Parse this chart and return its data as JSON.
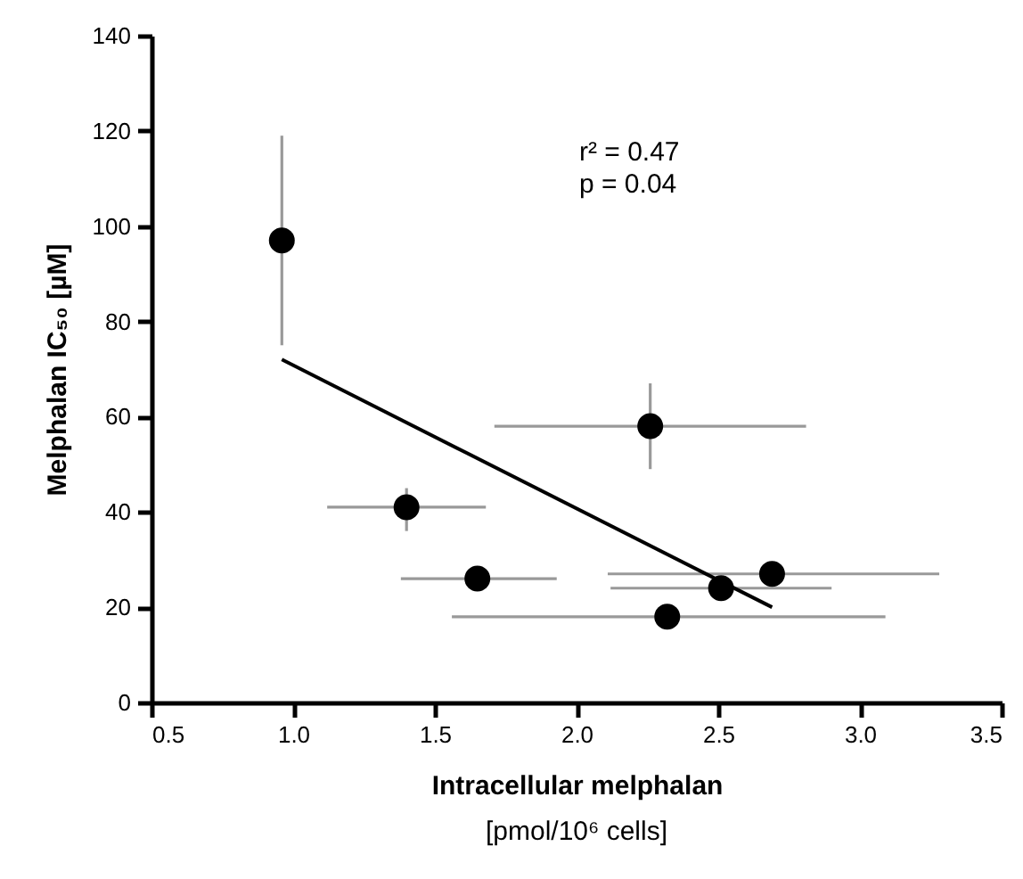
{
  "chart_data": {
    "type": "scatter",
    "xlabel": "Intracellular melphalan\n[pmol/10⁶ cells]",
    "ylabel": "Melphalan IC₅₀ [µM]",
    "annotations": [
      "r² = 0.47",
      "p = 0.04"
    ],
    "xlim": [
      0.5,
      3.5
    ],
    "xticks": [
      0.5,
      {
        "value": 1,
        "label": "1.0"
      },
      1.5,
      {
        "value": 2,
        "label": "2.0"
      },
      2.5,
      {
        "value": 3,
        "label": "3.0"
      },
      3.5
    ],
    "ylim": [
      0,
      140
    ],
    "yticks": [
      0,
      20,
      40,
      60,
      80,
      100,
      120,
      140
    ],
    "grid": false,
    "marker": "circle",
    "series": [
      {
        "color": "#000000",
        "x": [
          0.96,
          2.26,
          1.4,
          1.65,
          2.51,
          2.69,
          2.32
        ],
        "values": [
          97,
          58,
          41,
          26,
          24,
          27,
          18
        ],
        "errors": [
          [
            75,
            119
          ],
          [
            49,
            67
          ],
          [
            36,
            45
          ],
          null,
          null,
          null,
          null
        ],
        "xerrors": [
          null,
          [
            1.71,
            2.81
          ],
          [
            1.12,
            1.68
          ],
          [
            1.38,
            1.93
          ],
          [
            2.12,
            2.9
          ],
          [
            2.11,
            3.28
          ],
          [
            1.56,
            3.09
          ]
        ]
      },
      {
        "type": "line",
        "color": "#000000",
        "x": [
          0.96,
          2.69
        ],
        "values": [
          72,
          20
        ],
        "line_style": "solid",
        "marker": "none"
      }
    ]
  }
}
